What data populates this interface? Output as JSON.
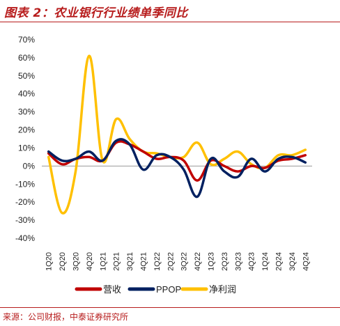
{
  "header": {
    "title": "图表 2：农业银行行业绩单季同比"
  },
  "footer": {
    "source": "来源：公司财报，中泰证券研究所"
  },
  "colors": {
    "brand": "#b71c1c"
  },
  "chart_data": {
    "type": "line",
    "categories": [
      "1Q20",
      "2Q20",
      "3Q20",
      "4Q20",
      "1Q21",
      "2Q21",
      "3Q21",
      "4Q21",
      "1Q22",
      "2Q22",
      "3Q22",
      "4Q22",
      "1Q23",
      "2Q23",
      "3Q23",
      "4Q23",
      "1Q24",
      "2Q24",
      "3Q24",
      "4Q24"
    ],
    "y_ticks": [
      "70%",
      "60%",
      "50%",
      "40%",
      "30%",
      "20%",
      "10%",
      "0%",
      "-10%",
      "-20%",
      "-30%",
      "-40%"
    ],
    "ylim": [
      -40,
      70
    ],
    "y_unit": "%",
    "grid": false,
    "legend_position": "bottom",
    "series": [
      {
        "name": "营收",
        "color": "#c00000",
        "values": [
          7,
          1,
          4,
          5,
          3,
          13,
          12,
          8,
          4,
          5,
          3,
          -8,
          3,
          0,
          -3,
          0,
          -1,
          3,
          4,
          6
        ]
      },
      {
        "name": "PPOP",
        "color": "#002060",
        "values": [
          8,
          3,
          4,
          8,
          3,
          14,
          12,
          -2,
          6,
          5,
          -2,
          -17,
          4,
          -3,
          -6,
          4,
          -3,
          4,
          5,
          2
        ]
      },
      {
        "name": "净利润",
        "color": "#ffc000",
        "values": [
          5,
          -26,
          -3,
          61,
          3,
          26,
          15,
          8,
          7,
          5,
          5,
          13,
          1,
          4,
          8,
          1,
          -1,
          6,
          6,
          9
        ]
      }
    ]
  }
}
